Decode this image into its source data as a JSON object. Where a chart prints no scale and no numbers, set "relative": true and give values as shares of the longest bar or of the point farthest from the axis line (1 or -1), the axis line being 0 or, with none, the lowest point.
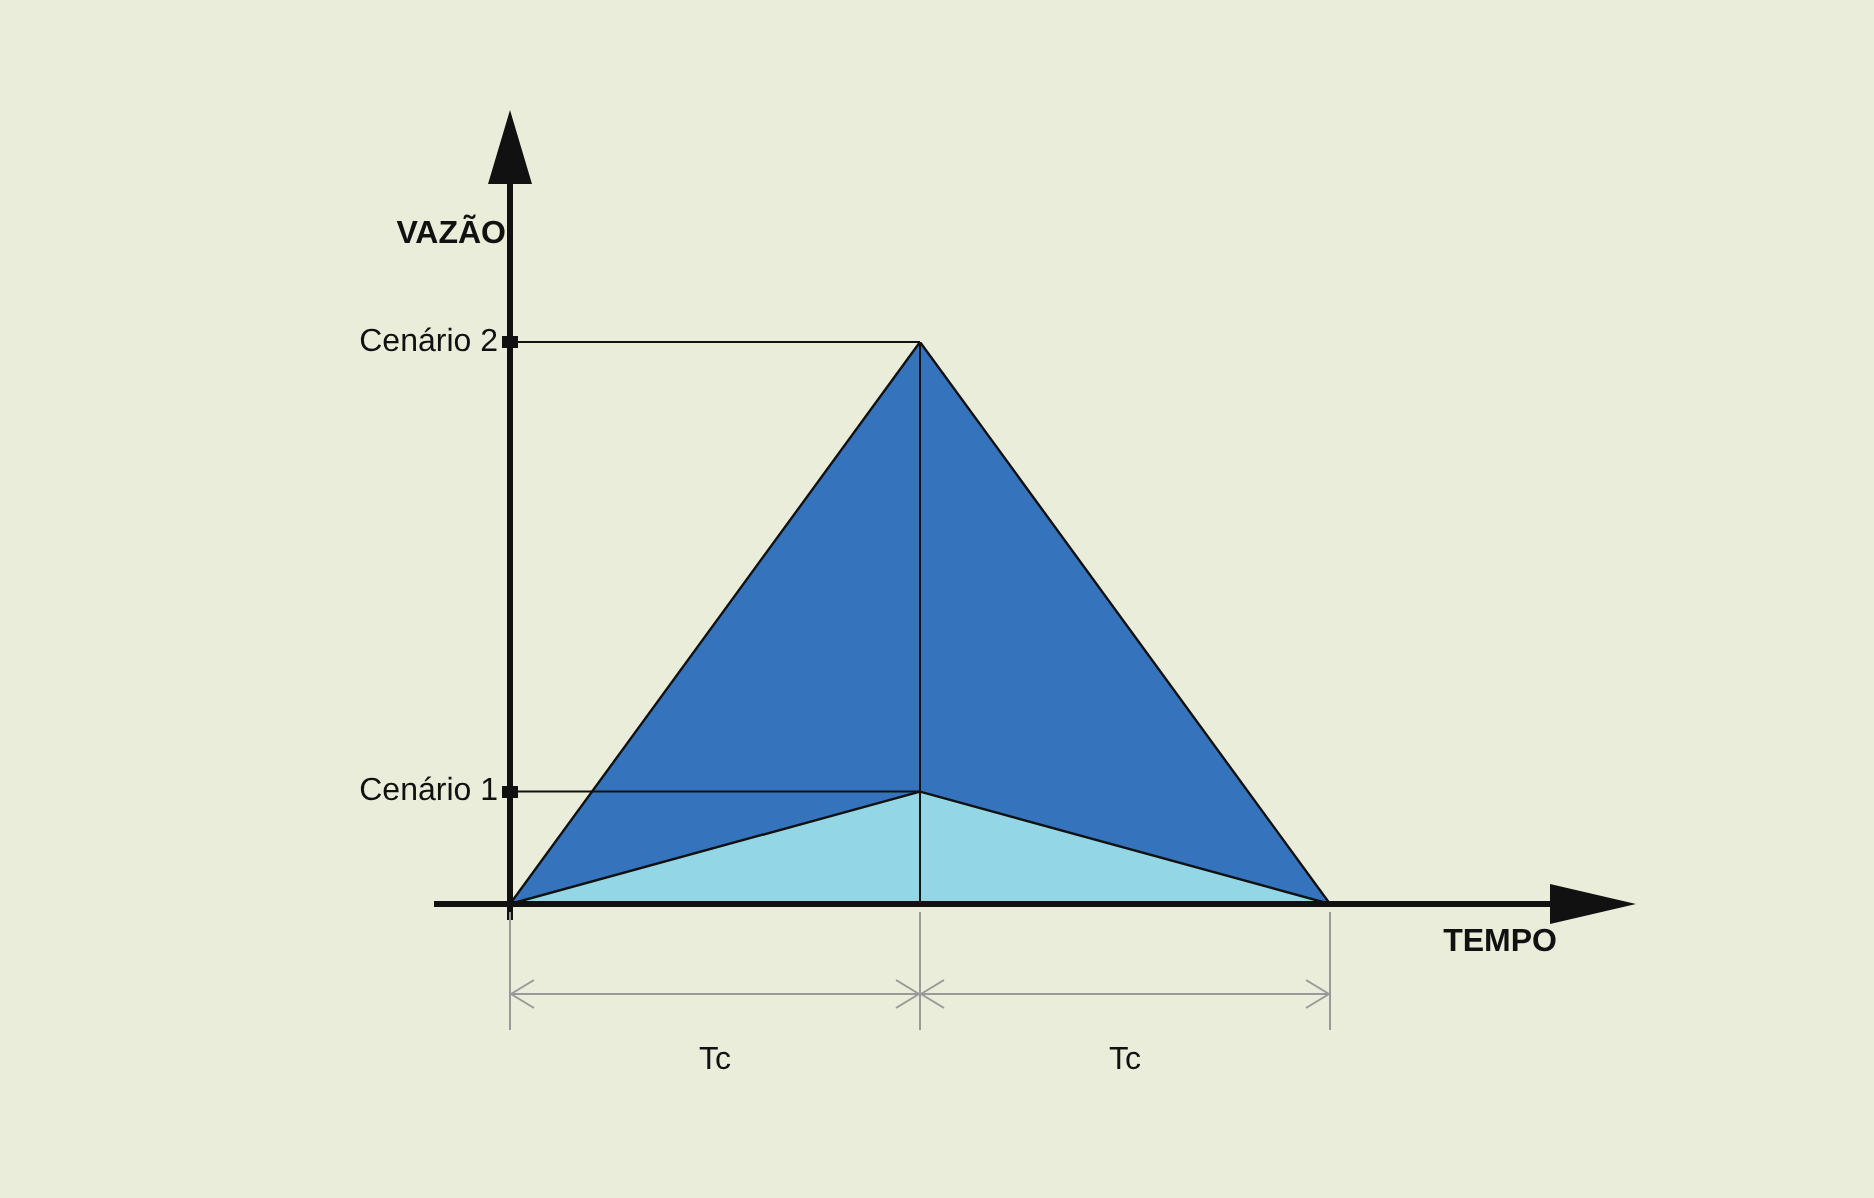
{
  "chart_data": {
    "type": "area",
    "relative": true,
    "xlabel": "TEMPO",
    "ylabel": "VAZÃO",
    "categories": [
      null,
      null,
      null
    ],
    "series": [
      {
        "name": "Cenário 1",
        "color": "#93d6e6",
        "values": [
          0,
          0.2,
          0
        ]
      },
      {
        "name": "Cenário 2",
        "color": "#3574bd",
        "values": [
          0,
          1,
          0
        ]
      }
    ],
    "annotations": [
      "Tc",
      "Tc"
    ],
    "legend": "left",
    "marker": "none"
  }
}
